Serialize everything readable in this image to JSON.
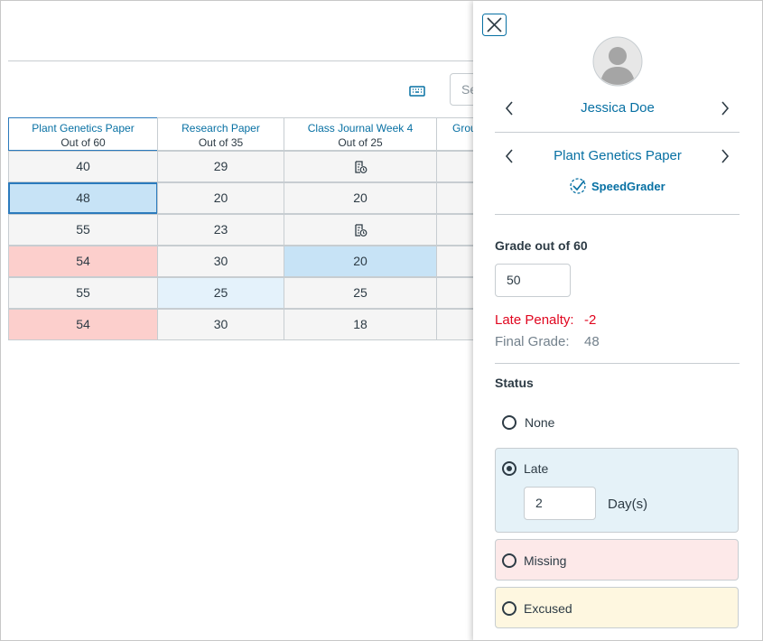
{
  "gradebook": {
    "search_placeholder": "Se",
    "columns": [
      {
        "title": "Plant Genetics Paper",
        "subtitle": "Out of 60"
      },
      {
        "title": "Research Paper",
        "subtitle": "Out of 35"
      },
      {
        "title": "Class Journal Week 4",
        "subtitle": "Out of 25"
      },
      {
        "title": "Grou"
      }
    ],
    "rows": [
      [
        40,
        29,
        null
      ],
      [
        48,
        20,
        20
      ],
      [
        55,
        23,
        null
      ],
      [
        54,
        30,
        20
      ],
      [
        55,
        25,
        25
      ],
      [
        54,
        30,
        18
      ]
    ]
  },
  "tray": {
    "student": "Jessica Doe",
    "assignment": "Plant Genetics Paper",
    "speedgrader": "SpeedGrader",
    "grade_label": "Grade out of 60",
    "grade_value": "50",
    "late_penalty_label": "Late Penalty:",
    "late_penalty_value": "-2",
    "final_grade_label": "Final Grade:",
    "final_grade_value": "48",
    "status_label": "Status",
    "options": [
      "None",
      "Late",
      "Missing",
      "Excused"
    ],
    "days_value": "2",
    "days_label": "Day(s)"
  }
}
